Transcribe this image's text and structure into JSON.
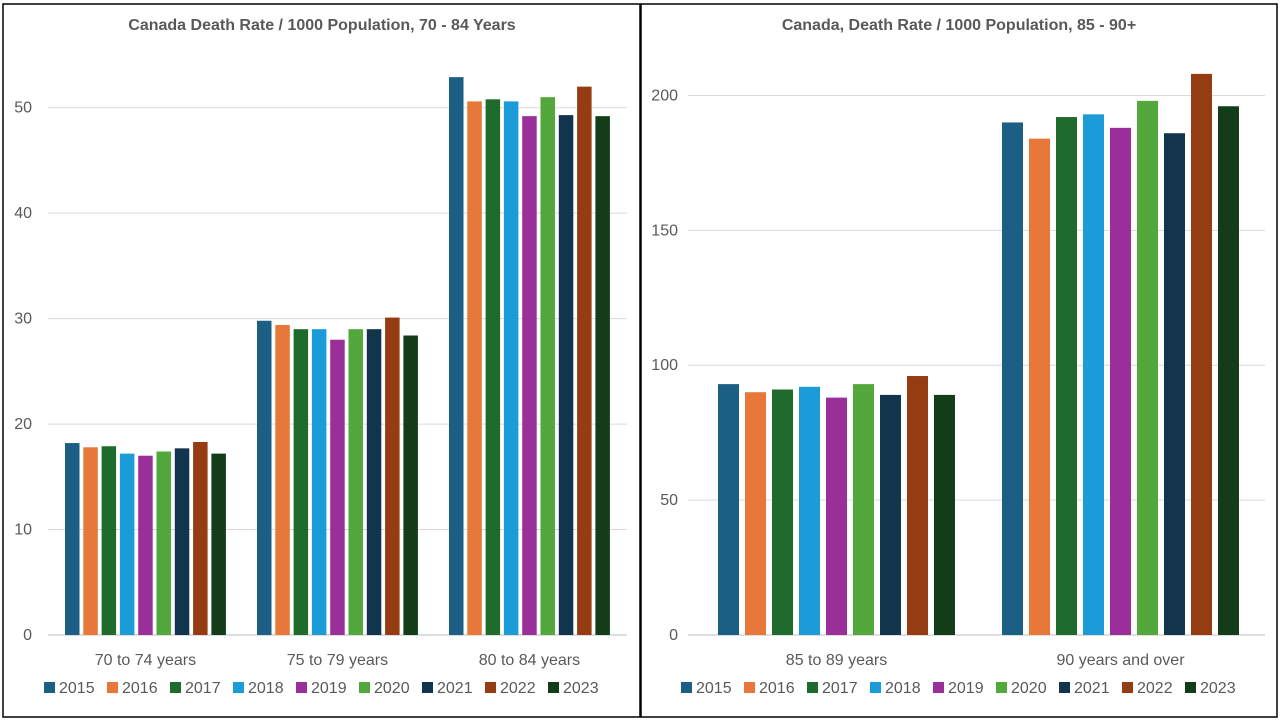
{
  "chart_data": [
    {
      "type": "bar",
      "title": "Canada Death Rate / 1000 Population, 70 - 84 Years",
      "xlabel": "",
      "ylabel": "",
      "ylim": [
        0,
        55
      ],
      "yticks": [
        0,
        10,
        20,
        30,
        40,
        50
      ],
      "grid": true,
      "legend_position": "bottom",
      "categories": [
        "70 to 74 years",
        "75 to 79 years",
        "80 to 84 years"
      ],
      "series": [
        {
          "name": "2015",
          "color": "#1b5f84",
          "values": [
            18.2,
            29.8,
            52.9
          ]
        },
        {
          "name": "2016",
          "color": "#e8773a",
          "values": [
            17.8,
            29.4,
            50.6
          ]
        },
        {
          "name": "2017",
          "color": "#1f6b2e",
          "values": [
            17.9,
            29.0,
            50.8
          ]
        },
        {
          "name": "2018",
          "color": "#1b9bd7",
          "values": [
            17.2,
            29.0,
            50.6
          ]
        },
        {
          "name": "2019",
          "color": "#9a2f9a",
          "values": [
            17.0,
            28.0,
            49.2
          ]
        },
        {
          "name": "2020",
          "color": "#52a83a",
          "values": [
            17.4,
            29.0,
            51.0
          ]
        },
        {
          "name": "2021",
          "color": "#12344d",
          "values": [
            17.7,
            29.0,
            49.3
          ]
        },
        {
          "name": "2022",
          "color": "#953c12",
          "values": [
            18.3,
            30.1,
            52.0
          ]
        },
        {
          "name": "2023",
          "color": "#123d18",
          "values": [
            17.2,
            28.4,
            49.2
          ]
        }
      ]
    },
    {
      "type": "bar",
      "title": "Canada, Death Rate / 1000 Population, 85 - 90+",
      "xlabel": "",
      "ylabel": "",
      "ylim": [
        0,
        215
      ],
      "yticks": [
        0,
        50,
        100,
        150,
        200
      ],
      "grid": true,
      "legend_position": "bottom",
      "categories": [
        "85 to 89 years",
        "90 years and over"
      ],
      "series": [
        {
          "name": "2015",
          "color": "#1b5f84",
          "values": [
            93,
            190
          ]
        },
        {
          "name": "2016",
          "color": "#e8773a",
          "values": [
            90,
            184
          ]
        },
        {
          "name": "2017",
          "color": "#1f6b2e",
          "values": [
            91,
            192
          ]
        },
        {
          "name": "2018",
          "color": "#1b9bd7",
          "values": [
            92,
            193
          ]
        },
        {
          "name": "2019",
          "color": "#9a2f9a",
          "values": [
            88,
            188
          ]
        },
        {
          "name": "2020",
          "color": "#52a83a",
          "values": [
            93,
            198
          ]
        },
        {
          "name": "2021",
          "color": "#12344d",
          "values": [
            89,
            186
          ]
        },
        {
          "name": "2022",
          "color": "#953c12",
          "values": [
            96,
            208
          ]
        },
        {
          "name": "2023",
          "color": "#123d18",
          "values": [
            89,
            196
          ]
        }
      ]
    }
  ]
}
